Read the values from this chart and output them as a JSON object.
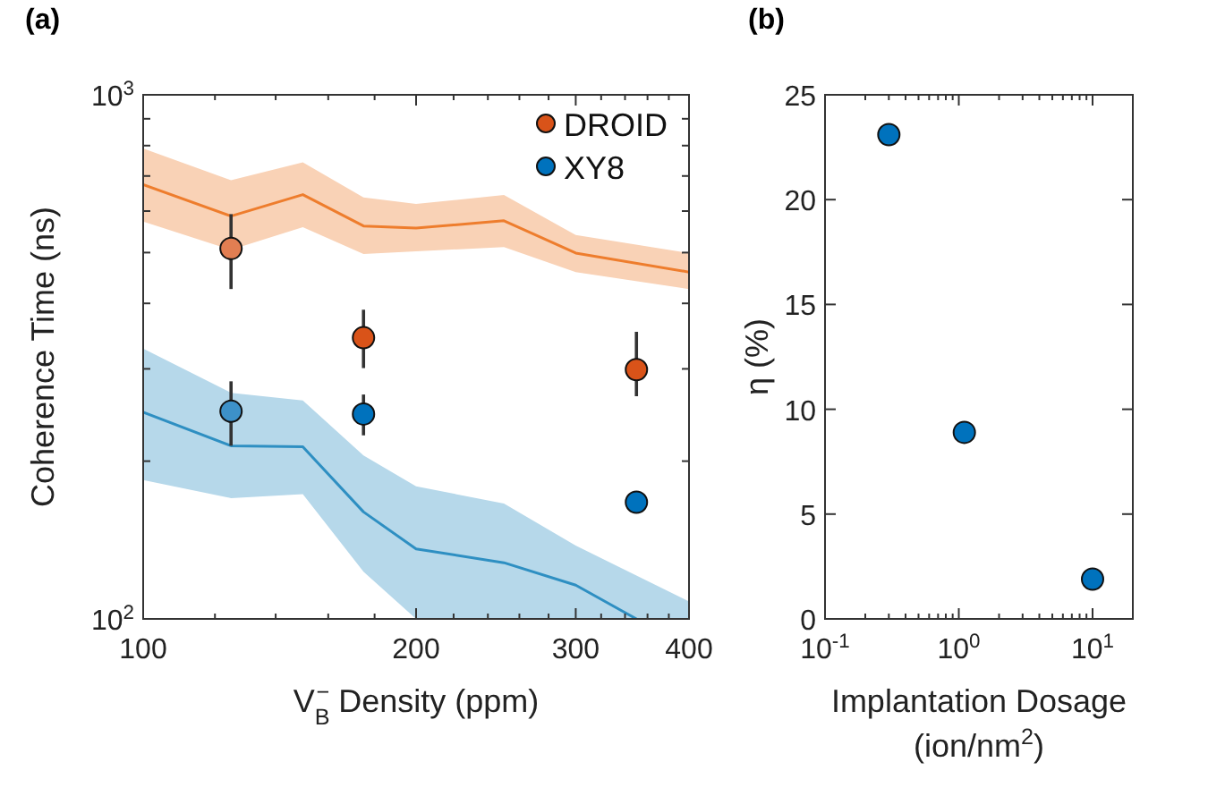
{
  "chart_data": [
    {
      "type": "line",
      "title": "(a)",
      "xlabel": "V$_{B}$$^{−}$ Density (ppm)",
      "ylabel": "Coherence Time (ns)",
      "log": "xy",
      "xlim": [
        100,
        400
      ],
      "ylim": [
        100,
        1000
      ],
      "xticks": [
        100,
        {
          "value": 120,
          "label": null
        },
        {
          "value": 140,
          "label": null
        },
        {
          "value": 160,
          "label": null
        },
        {
          "value": 180,
          "label": null
        },
        200,
        {
          "value": 220,
          "label": null
        },
        {
          "value": 240,
          "label": null
        },
        {
          "value": 260,
          "label": null
        },
        {
          "value": 280,
          "label": null
        },
        300,
        {
          "value": 320,
          "label": null
        },
        {
          "value": 340,
          "label": null
        },
        {
          "value": 360,
          "label": null
        },
        {
          "value": 380,
          "label": null
        },
        400
      ],
      "yticks": [
        {
          "value": 100,
          "label": "10$^{2}$"
        },
        {
          "value": 200,
          "label": null
        },
        {
          "value": 300,
          "label": null
        },
        {
          "value": 400,
          "label": null
        },
        {
          "value": 500,
          "label": null
        },
        {
          "value": 600,
          "label": null
        },
        {
          "value": 700,
          "label": null
        },
        {
          "value": 800,
          "label": null
        },
        {
          "value": 900,
          "label": null
        },
        {
          "value": 1000,
          "label": "10$^{3}$"
        }
      ],
      "legend": "top right",
      "series": [
        {
          "color": "#ee7d2d",
          "x": [
            100,
            125,
            150,
            175,
            200,
            250,
            300,
            400
          ],
          "values": [
            674,
            587,
            645,
            562,
            557,
            575,
            499,
            459
          ],
          "lower": [
            573,
            506,
            559,
            497,
            503,
            512,
            459,
            426
          ],
          "upper": [
            790,
            687,
            743,
            637,
            619,
            644,
            540,
            499
          ]
        },
        {
          "color": "#2e8fc2",
          "x": [
            100,
            125,
            150,
            175,
            200,
            250,
            300,
            350,
            400
          ],
          "values": [
            248,
            214,
            213,
            160,
            136,
            128,
            116,
            100,
            null
          ],
          "lower": [
            184,
            170,
            173,
            123,
            100,
            100,
            100,
            100,
            100
          ],
          "upper": [
            328,
            270,
            261,
            205,
            179,
            166,
            138,
            121,
            108
          ]
        },
        {
          "type": "scatter",
          "marker": "circle",
          "name": "DROID",
          "color": "#d95319",
          "colors": [
            "#e27e52",
            "#d95319",
            "#d95319"
          ],
          "x": [
            125,
            175,
            350
          ],
          "values": [
            509,
            344,
            299
          ],
          "errors": [
            [
              426,
              592
            ],
            [
              301,
              389
            ],
            [
              266,
              353
            ]
          ]
        },
        {
          "type": "scatter",
          "marker": "circle",
          "name": "XY8",
          "color": "#0072bd",
          "colors": [
            "#3d91c9",
            "#0072bd",
            "#0072bd"
          ],
          "x": [
            125,
            175,
            350
          ],
          "values": [
            249,
            246,
            167
          ],
          "errors": [
            [
              214,
              284
            ],
            [
              224,
              268
            ],
            [
              160,
              173
            ]
          ]
        }
      ]
    },
    {
      "type": "scatter",
      "title": "(b)",
      "xlabel": "Implantation Dosage (ion/nm$^{2}$)",
      "ylabel": "η (%)",
      "log": "x",
      "xlim": [
        0.1,
        20
      ],
      "ylim": [
        0,
        25
      ],
      "xticks": [
        {
          "value": 0.1,
          "label": "10$^{-1}$"
        },
        {
          "value": 0.2,
          "label": null
        },
        {
          "value": 0.3,
          "label": null
        },
        {
          "value": 0.4,
          "label": null
        },
        {
          "value": 0.5,
          "label": null
        },
        {
          "value": 0.6,
          "label": null
        },
        {
          "value": 0.7,
          "label": null
        },
        {
          "value": 0.8,
          "label": null
        },
        {
          "value": 0.9,
          "label": null
        },
        {
          "value": 1,
          "label": "10$^{0}$"
        },
        {
          "value": 2,
          "label": null
        },
        {
          "value": 3,
          "label": null
        },
        {
          "value": 4,
          "label": null
        },
        {
          "value": 5,
          "label": null
        },
        {
          "value": 6,
          "label": null
        },
        {
          "value": 7,
          "label": null
        },
        {
          "value": 8,
          "label": null
        },
        {
          "value": 9,
          "label": null
        },
        {
          "value": 10,
          "label": "10$^{1}$"
        },
        {
          "value": 20,
          "label": null
        }
      ],
      "yticks": [
        0,
        5,
        10,
        15,
        20,
        25
      ],
      "marker": "circle",
      "series": [
        {
          "color": "#0072bd",
          "x": [
            0.3,
            1.1,
            10
          ],
          "values": [
            23.1,
            8.9,
            1.9
          ]
        }
      ]
    }
  ]
}
